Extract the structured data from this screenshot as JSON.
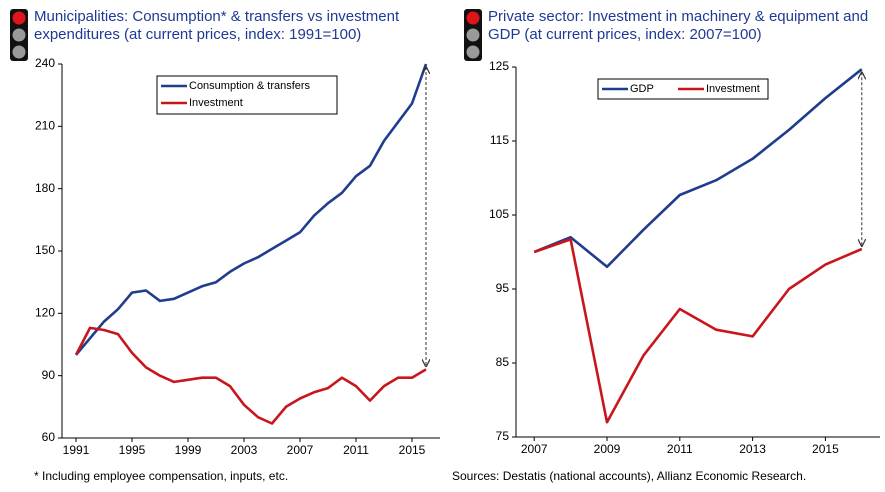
{
  "chart_data": [
    {
      "type": "line",
      "title": "Municipalities: Consumption* & transfers vs investment expenditures (at current prices, index: 1991=100)",
      "x": [
        1991,
        1992,
        1993,
        1994,
        1995,
        1996,
        1997,
        1998,
        1999,
        2000,
        2001,
        2002,
        2003,
        2004,
        2005,
        2006,
        2007,
        2008,
        2009,
        2010,
        2011,
        2012,
        2013,
        2014,
        2015,
        2016
      ],
      "series": [
        {
          "name": "Consumption & transfers",
          "color": "#1f3d8f",
          "values": [
            100,
            108,
            116,
            122,
            130,
            131,
            126,
            127,
            130,
            133,
            135,
            140,
            144,
            147,
            151,
            155,
            159,
            167,
            173,
            178,
            186,
            191,
            203,
            212,
            221,
            240
          ]
        },
        {
          "name": "Investment",
          "color": "#c8161d",
          "values": [
            100,
            113,
            112,
            110,
            101,
            94,
            90,
            87,
            88,
            89,
            89,
            85,
            76,
            70,
            67,
            75,
            79,
            82,
            84,
            89,
            85,
            78,
            85,
            89,
            89,
            93
          ]
        }
      ],
      "xlim": [
        1990,
        2017
      ],
      "xticks": [
        1991,
        1995,
        1999,
        2003,
        2007,
        2011,
        2015
      ],
      "ylim": [
        60,
        240
      ],
      "yticks": [
        60,
        90,
        120,
        150,
        180,
        210,
        240
      ],
      "legend": "top-right",
      "footnote": "* Including employee compensation, inputs, etc."
    },
    {
      "type": "line",
      "title": "Private sector: Investment in machinery & equipment and GDP (at current prices, index: 2007=100)",
      "x": [
        2007,
        2008,
        2009,
        2010,
        2011,
        2012,
        2013,
        2014,
        2015,
        2016
      ],
      "series": [
        {
          "name": "GDP",
          "color": "#1f3d8f",
          "values": [
            100,
            102,
            98,
            103,
            107.7,
            109.7,
            112.6,
            116.5,
            120.8,
            124.7
          ]
        },
        {
          "name": "Investment",
          "color": "#c8161d",
          "values": [
            100,
            101.7,
            77,
            86,
            92.3,
            89.5,
            88.6,
            95,
            98.3,
            100.4
          ]
        }
      ],
      "xlim": [
        2006.5,
        2016.5
      ],
      "xticks": [
        2007,
        2009,
        2011,
        2013,
        2015
      ],
      "ylim": [
        75,
        125
      ],
      "yticks": [
        75,
        85,
        95,
        105,
        115,
        125
      ],
      "legend": "top-left",
      "footnote": "Sources: Destatis (national accounts), Allianz Economic Research."
    }
  ]
}
